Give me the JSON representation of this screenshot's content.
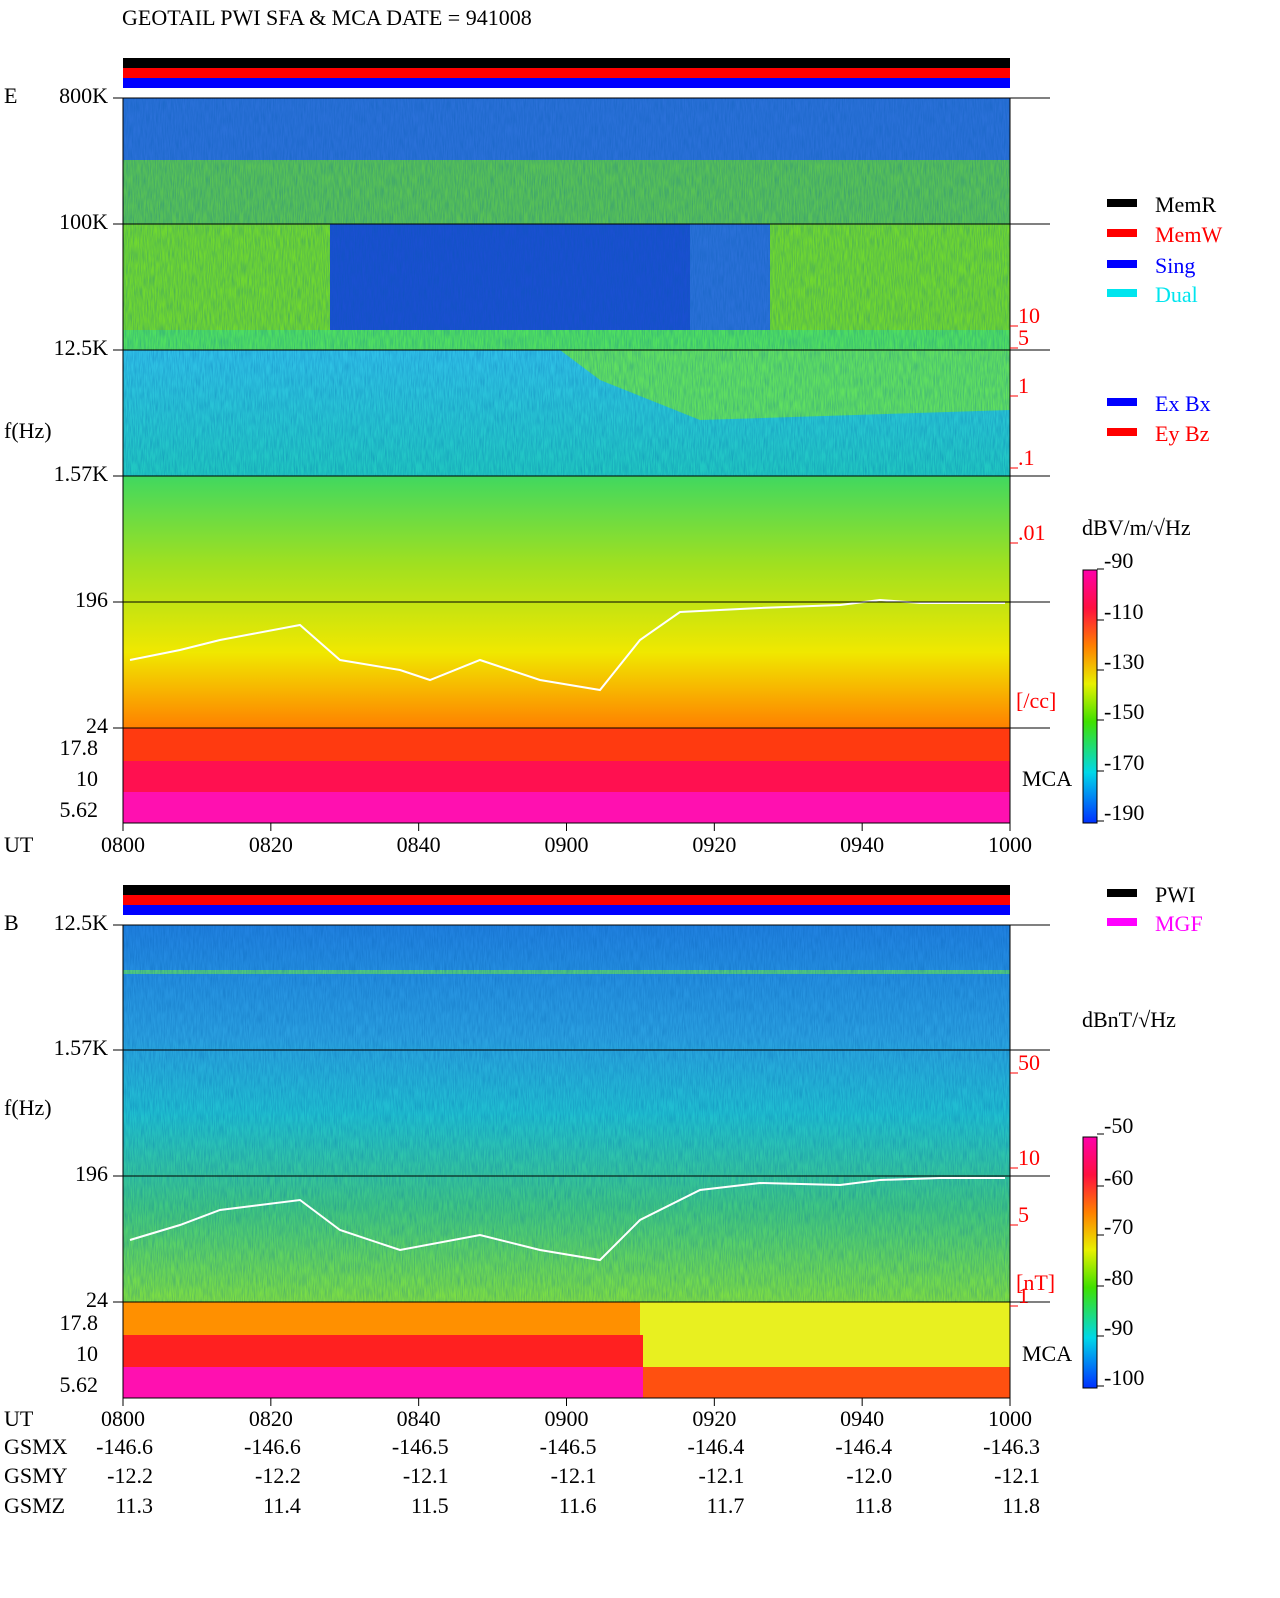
{
  "header": {
    "title": "GEOTAIL  PWI SFA & MCA   DATE = 941008"
  },
  "panels": [
    {
      "label": "E",
      "axis_label": "f(Hz)",
      "freq_ticks": [
        "800K",
        "100K",
        "12.5K",
        "1.57K",
        "196",
        "24"
      ],
      "mca_ticks": [
        "17.8",
        "10",
        "5.62"
      ],
      "time_label": "UT",
      "times": [
        "0800",
        "0820",
        "0840",
        "0900",
        "0920",
        "0940",
        "1000"
      ],
      "right_ticks": [
        "10",
        "5",
        "1",
        ".1",
        ".01"
      ],
      "right_unit": "[/cc]",
      "mca_label": "MCA",
      "legend": [
        {
          "name": "MemR",
          "color": "#000000"
        },
        {
          "name": "MemW",
          "color": "#ff0000"
        },
        {
          "name": "Sing",
          "color": "#0000ff"
        },
        {
          "name": "Dual",
          "color": "#00e5ee"
        }
      ],
      "legend2": [
        {
          "name": "Ex Bx",
          "color": "#0000ff"
        },
        {
          "name": "Ey Bz",
          "color": "#ff0000"
        }
      ],
      "colorbar_label": "dBV/m/√Hz",
      "colorbar_ticks": [
        "-90",
        "-110",
        "-130",
        "-150",
        "-170",
        "-190"
      ]
    },
    {
      "label": "B",
      "axis_label": "f(Hz)",
      "freq_ticks": [
        "12.5K",
        "1.57K",
        "196",
        "24"
      ],
      "mca_ticks": [
        "17.8",
        "10",
        "5.62"
      ],
      "time_label": "UT",
      "times": [
        "0800",
        "0820",
        "0840",
        "0900",
        "0920",
        "0940",
        "1000"
      ],
      "right_ticks": [
        "50",
        "10",
        "5",
        "1"
      ],
      "right_unit": "[nT]",
      "mca_label": "MCA",
      "legend": [
        {
          "name": "PWI",
          "color": "#000000"
        },
        {
          "name": "MGF",
          "color": "#ff00ff"
        }
      ],
      "legend2": [],
      "colorbar_label": "dBnT/√Hz",
      "colorbar_ticks": [
        "-50",
        "-60",
        "-70",
        "-80",
        "-90",
        "-100"
      ]
    }
  ],
  "orbit": {
    "rows": [
      {
        "name": "GSMX",
        "values": [
          "-146.6",
          "-146.6",
          "-146.5",
          "-146.5",
          "-146.4",
          "-146.4",
          "-146.3"
        ]
      },
      {
        "name": "GSMY",
        "values": [
          "-12.2",
          "-12.2",
          "-12.1",
          "-12.1",
          "-12.1",
          "-12.0",
          "-12.1"
        ]
      },
      {
        "name": "GSMZ",
        "values": [
          "11.3",
          "11.4",
          "11.5",
          "11.6",
          "11.7",
          "11.8",
          "11.8"
        ]
      }
    ]
  }
}
